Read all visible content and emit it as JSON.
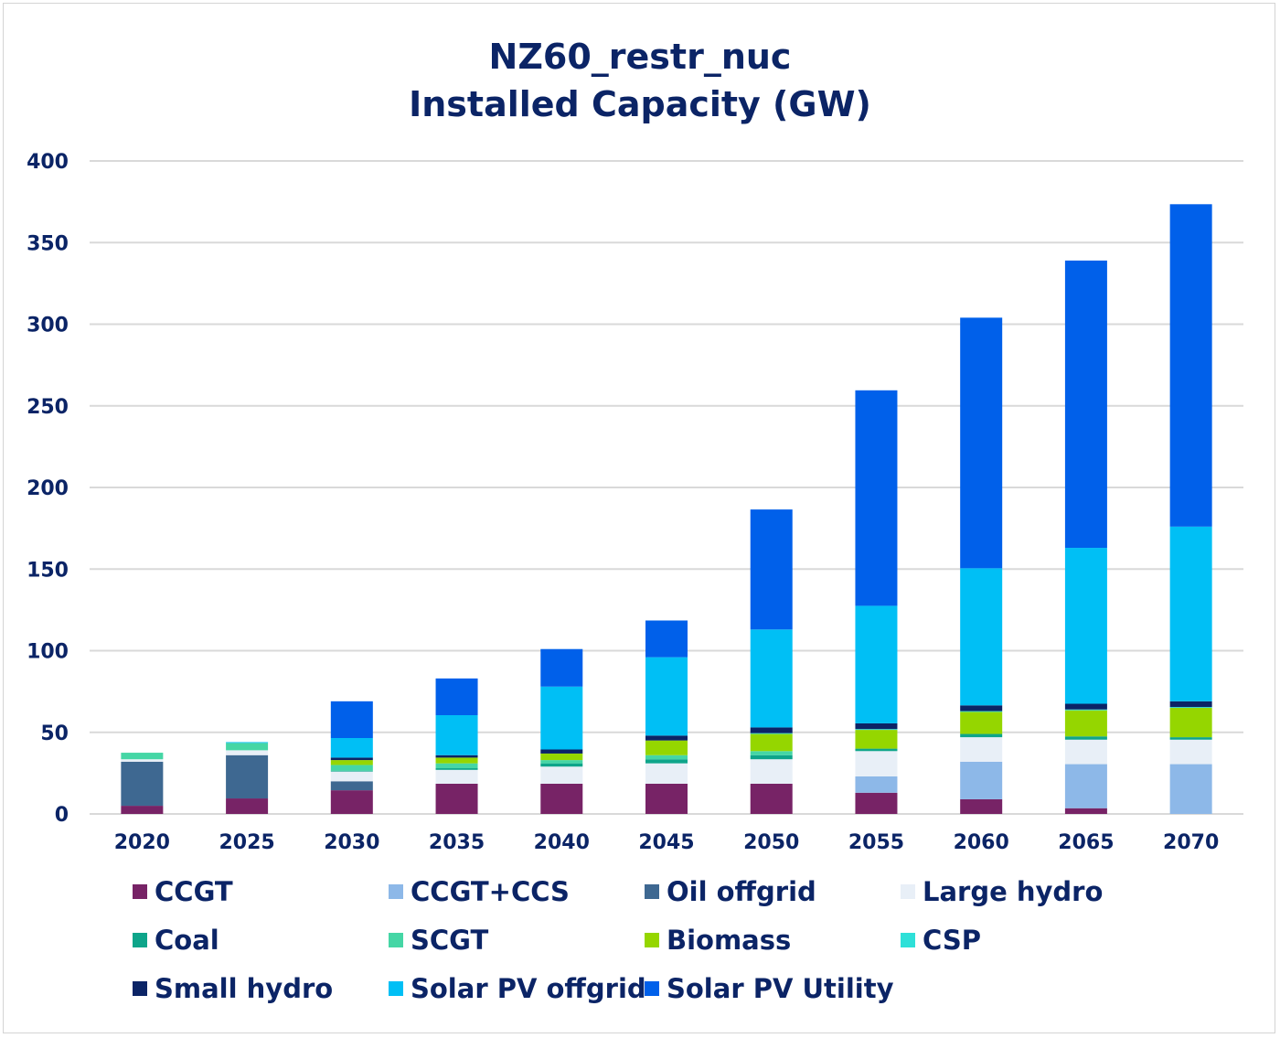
{
  "chart_data": {
    "type": "bar",
    "stacked": true,
    "title": "NZ60_restr_nuc",
    "subtitle": "Installed Capacity (GW)",
    "xlabel": "",
    "ylabel": "",
    "ylim": [
      0,
      400
    ],
    "yticks": [
      0,
      50,
      100,
      150,
      200,
      250,
      300,
      350,
      400
    ],
    "grid": true,
    "legend_position": "bottom",
    "categories": [
      "2020",
      "2025",
      "2030",
      "2035",
      "2040",
      "2045",
      "2050",
      "2055",
      "2060",
      "2065",
      "2070"
    ],
    "series": [
      {
        "name": "CCGT",
        "color": "#772366",
        "values": [
          5,
          9.5,
          14.5,
          18.5,
          18.5,
          18.5,
          18.5,
          13,
          9,
          3.5,
          0
        ]
      },
      {
        "name": "CCGT+CCS",
        "color": "#8db8e8",
        "values": [
          0,
          0,
          0,
          0,
          0,
          0,
          0,
          10,
          23,
          27,
          30.5
        ]
      },
      {
        "name": "Oil offgrid",
        "color": "#3e6891",
        "values": [
          27,
          26.5,
          5.5,
          0,
          0,
          0,
          0,
          0,
          0,
          0,
          0
        ]
      },
      {
        "name": "Large hydro",
        "color": "#e8eff7",
        "values": [
          1.5,
          3,
          6,
          8.5,
          10.5,
          12.5,
          15,
          15.5,
          15,
          15,
          15
        ]
      },
      {
        "name": "Coal",
        "color": "#0ea58a",
        "values": [
          0,
          0,
          0.5,
          1,
          2,
          2.5,
          2.5,
          1.5,
          2,
          2,
          1.5
        ]
      },
      {
        "name": "SCGT",
        "color": "#45d6a5",
        "values": [
          4,
          4.5,
          3.5,
          3,
          2,
          2.5,
          2.5,
          0,
          0,
          0,
          0
        ]
      },
      {
        "name": "Biomass",
        "color": "#95d600",
        "values": [
          0,
          0,
          3,
          3.5,
          4,
          9,
          10.5,
          11.5,
          13.5,
          16,
          18
        ]
      },
      {
        "name": "CSP",
        "color": "#2ee0d8",
        "values": [
          0,
          0,
          0,
          0,
          0,
          0,
          0.5,
          0.5,
          0.5,
          0.5,
          0.5
        ]
      },
      {
        "name": "Small hydro",
        "color": "#0b2466",
        "values": [
          0,
          0,
          1.5,
          1.5,
          2.5,
          3,
          3.5,
          3.5,
          3.5,
          3.5,
          3.5
        ]
      },
      {
        "name": "Solar PV offgrid",
        "color": "#00bff5",
        "values": [
          0,
          0.5,
          12,
          24.5,
          38.5,
          48,
          60,
          72,
          84,
          95.5,
          107
        ]
      },
      {
        "name": "Solar PV Utility",
        "color": "#0060ea",
        "values": [
          0,
          0,
          22.5,
          22.5,
          23,
          22.5,
          73.5,
          132,
          153.5,
          176,
          197.5
        ]
      }
    ]
  },
  "legend_rows": [
    [
      "CCGT",
      "CCGT+CCS",
      "Oil offgrid",
      "Large hydro"
    ],
    [
      "Coal",
      "SCGT",
      "Biomass",
      "CSP"
    ],
    [
      "Small hydro",
      "Solar PV offgrid",
      "Solar PV Utility"
    ]
  ]
}
